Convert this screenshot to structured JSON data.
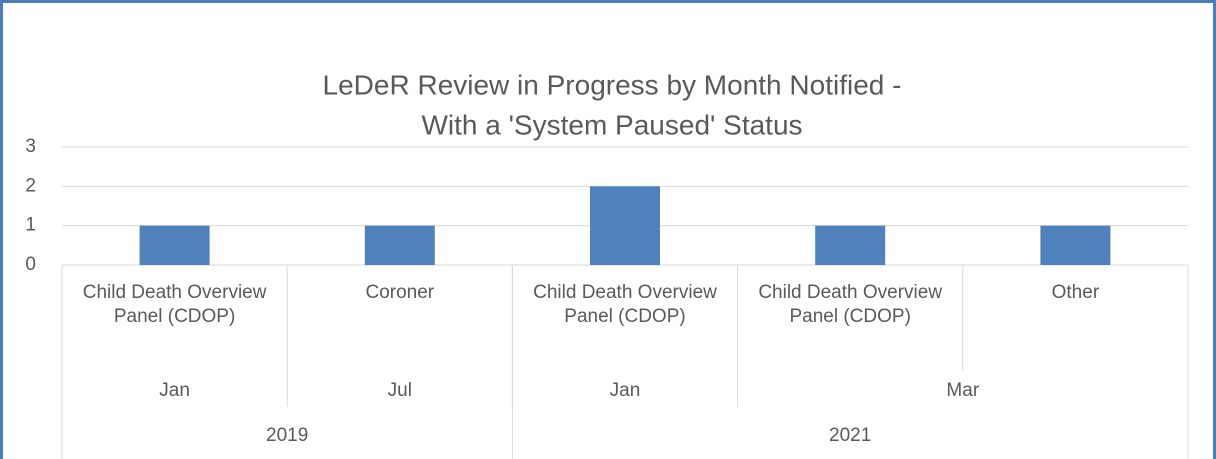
{
  "chart_data": {
    "type": "bar",
    "title_lines": [
      "LeDeR Review in Progress by Month Notified  -",
      "With a 'System Paused' Status"
    ],
    "categories": [
      "Child Death Overview Panel (CDOP)",
      "Coroner",
      "Child Death Overview Panel (CDOP)",
      "Child Death Overview Panel (CDOP)",
      "Other"
    ],
    "months": [
      {
        "label": "Jan",
        "size": 1
      },
      {
        "label": "Jul",
        "size": 1
      },
      {
        "label": "Jan",
        "size": 1
      },
      {
        "label": "Mar",
        "size": 2
      }
    ],
    "years": [
      {
        "label": "2019",
        "size": 2
      },
      {
        "label": "2021",
        "size": 3
      }
    ],
    "values": [
      1,
      1,
      2,
      1,
      1
    ],
    "color": "#4f81bd",
    "ylim": [
      0,
      3
    ],
    "yticks": [
      0,
      1,
      2,
      3
    ],
    "grid": true
  }
}
